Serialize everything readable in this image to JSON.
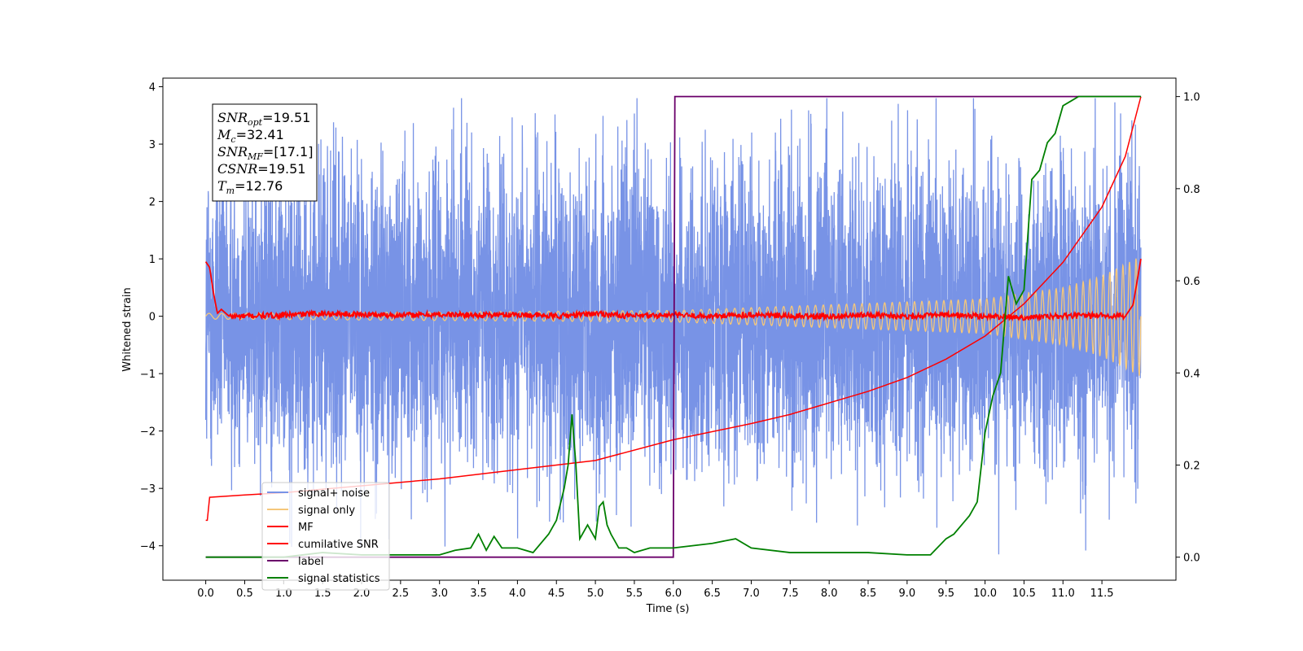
{
  "chart_data": {
    "type": "line",
    "xlabel": "Time (s)",
    "ylabel_left": "Whitened strain",
    "ylabel_right": "",
    "xlim": [
      -0.55,
      12.45
    ],
    "ylim_left": [
      -4.6,
      4.15
    ],
    "ylim_right": [
      -0.05,
      1.04
    ],
    "x_ticks": [
      0.0,
      0.5,
      1.0,
      1.5,
      2.0,
      2.5,
      3.0,
      3.5,
      4.0,
      4.5,
      5.0,
      5.5,
      6.0,
      6.5,
      7.0,
      7.5,
      8.0,
      8.5,
      9.0,
      9.5,
      10.0,
      10.5,
      11.0,
      11.5
    ],
    "x_tick_labels": [
      "0.0",
      "0.5",
      "1.0",
      "1.5",
      "2.0",
      "2.5",
      "3.0",
      "3.5",
      "4.0",
      "4.5",
      "5.0",
      "5.5",
      "6.0",
      "6.5",
      "7.0",
      "7.5",
      "8.0",
      "8.5",
      "9.0",
      "9.5",
      "10.0",
      "10.5",
      "11.0",
      "11.5"
    ],
    "y_left_ticks": [
      4,
      3,
      2,
      1,
      0,
      -1,
      -2,
      -3,
      -4
    ],
    "y_left_tick_labels": [
      "4",
      "3",
      "2",
      "1",
      "0",
      "−1",
      "−2",
      "−3",
      "−4"
    ],
    "y_right_ticks": [
      1.0,
      0.8,
      0.6,
      0.4,
      0.2,
      0.0
    ],
    "y_right_tick_labels": [
      "1.0",
      "0.8",
      "0.6",
      "0.4",
      "0.2",
      "0.0"
    ],
    "grid": false,
    "legend_position": "lower-left",
    "colors": {
      "signal_noise": "#7893e6",
      "signal_only": "#f5c77a",
      "mf": "#ff0000",
      "cumulative_snr": "#ff0000",
      "label": "#6a006a",
      "signal_statistics": "#008000"
    },
    "series": [
      {
        "name": "signal+ noise",
        "axis": "left",
        "description_values": {
          "x_range": [
            0.0,
            12.0
          ],
          "mean": 0.0,
          "typical_range": [
            -2.0,
            2.0
          ],
          "max": 3.8,
          "min": -4.15
        }
      },
      {
        "name": "signal only",
        "axis": "left",
        "envelope": {
          "x": [
            0.0,
            6.0,
            10.0,
            11.0,
            11.5,
            12.0
          ],
          "amplitude": [
            0.05,
            0.1,
            0.3,
            0.5,
            0.7,
            1.05
          ]
        }
      },
      {
        "name": "MF",
        "axis": "left",
        "x": [
          0.0,
          0.05,
          0.1,
          0.15,
          0.2,
          0.3,
          0.5,
          1.0,
          1.5,
          2.0,
          2.5,
          3.0,
          3.5,
          4.0,
          4.5,
          5.0,
          5.5,
          6.0,
          6.5,
          7.0,
          7.5,
          8.0,
          8.5,
          9.0,
          9.5,
          10.0,
          10.5,
          11.0,
          11.5,
          11.8,
          11.9,
          12.0
        ],
        "y": [
          0.95,
          0.85,
          0.4,
          0.05,
          0.12,
          0.0,
          0.0,
          0.02,
          0.05,
          0.03,
          0.02,
          0.03,
          0.02,
          0.03,
          0.0,
          0.05,
          0.0,
          0.02,
          0.0,
          0.03,
          0.0,
          0.0,
          0.02,
          0.0,
          0.02,
          0.0,
          -0.02,
          0.0,
          0.02,
          0.0,
          0.2,
          1.0
        ]
      },
      {
        "name": "cumilative SNR",
        "axis": "right",
        "x": [
          0.0,
          0.02,
          0.05,
          0.5,
          1.0,
          2.0,
          3.0,
          4.0,
          5.0,
          6.0,
          7.0,
          7.5,
          8.0,
          8.5,
          9.0,
          9.5,
          10.0,
          10.5,
          11.0,
          11.5,
          11.8,
          12.0
        ],
        "y": [
          0.08,
          0.08,
          0.13,
          0.135,
          0.14,
          0.155,
          0.17,
          0.19,
          0.21,
          0.255,
          0.29,
          0.31,
          0.335,
          0.36,
          0.39,
          0.43,
          0.48,
          0.55,
          0.64,
          0.76,
          0.87,
          1.0
        ]
      },
      {
        "name": "label",
        "axis": "right",
        "x": [
          0.0,
          6.0,
          6.02,
          12.0
        ],
        "y": [
          0.0,
          0.0,
          1.0,
          1.0
        ]
      },
      {
        "name": "signal statistics",
        "axis": "right",
        "x": [
          0.0,
          0.5,
          1.0,
          1.5,
          2.0,
          2.5,
          3.0,
          3.2,
          3.4,
          3.5,
          3.6,
          3.7,
          3.8,
          4.0,
          4.2,
          4.4,
          4.5,
          4.6,
          4.65,
          4.7,
          4.75,
          4.8,
          4.9,
          5.0,
          5.05,
          5.1,
          5.15,
          5.2,
          5.3,
          5.4,
          5.5,
          5.7,
          6.0,
          6.5,
          6.8,
          7.0,
          7.5,
          8.0,
          8.5,
          9.0,
          9.3,
          9.5,
          9.6,
          9.7,
          9.8,
          9.9,
          10.0,
          10.1,
          10.2,
          10.3,
          10.4,
          10.5,
          10.6,
          10.7,
          10.8,
          10.9,
          11.0,
          11.1,
          11.2,
          11.3,
          11.5,
          11.7,
          11.8,
          11.9,
          12.0
        ],
        "y": [
          0.0,
          0.0,
          0.0,
          0.01,
          0.005,
          0.005,
          0.005,
          0.015,
          0.02,
          0.05,
          0.015,
          0.045,
          0.02,
          0.02,
          0.01,
          0.05,
          0.08,
          0.15,
          0.2,
          0.31,
          0.2,
          0.04,
          0.07,
          0.04,
          0.11,
          0.12,
          0.07,
          0.05,
          0.02,
          0.02,
          0.01,
          0.02,
          0.02,
          0.03,
          0.04,
          0.02,
          0.01,
          0.01,
          0.01,
          0.005,
          0.005,
          0.04,
          0.05,
          0.07,
          0.09,
          0.12,
          0.27,
          0.35,
          0.4,
          0.61,
          0.55,
          0.58,
          0.82,
          0.84,
          0.9,
          0.92,
          0.98,
          0.99,
          1.0,
          1.0,
          1.0,
          1.0,
          1.0,
          1.0,
          1.0
        ]
      }
    ],
    "legend_entries": [
      "signal+ noise",
      "signal only",
      "MF",
      "cumilative SNR",
      "label",
      "signal statistics"
    ],
    "annotation": {
      "lines": [
        {
          "sym": "SNR",
          "sub": "opt",
          "val": "=19.51"
        },
        {
          "sym": "M",
          "sub": "c",
          "val": "=32.41"
        },
        {
          "sym": "SNR",
          "sub": "MF",
          "val": "=[17.1]"
        },
        {
          "sym": "CSNR",
          "sub": "",
          "val": "=19.51"
        },
        {
          "sym": "T",
          "sub": "m",
          "val": "=12.76"
        }
      ]
    }
  }
}
